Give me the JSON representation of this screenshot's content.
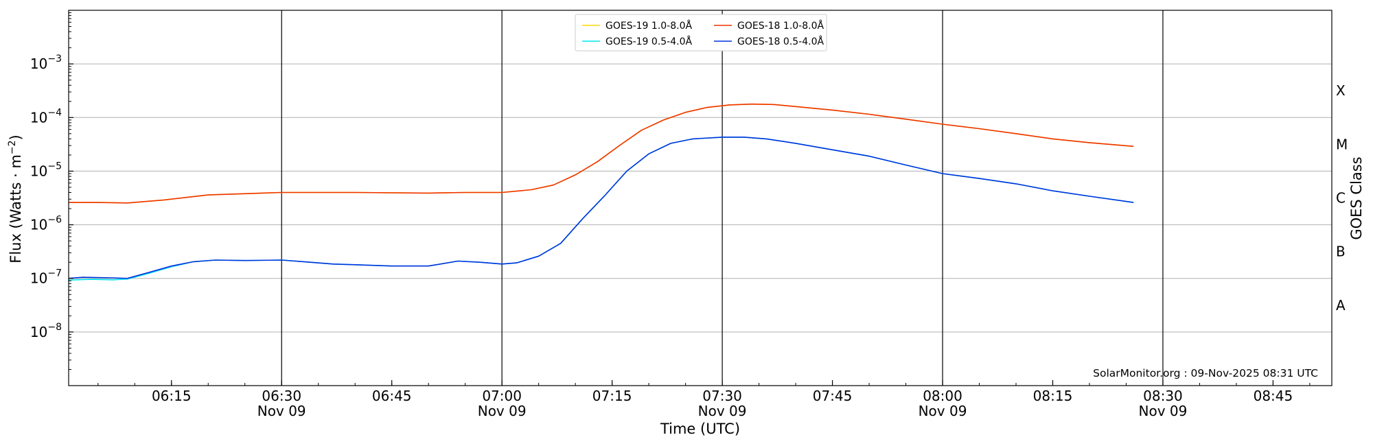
{
  "chart_data": {
    "type": "line",
    "ylabel": "Flux (Watts · m",
    "ylabel_sup": "−2",
    "ylabel_close": ")",
    "xlabel": "Time (UTC)",
    "y2label": "GOES Class",
    "y_scale": "log",
    "ylim": [
      1e-09,
      0.01
    ],
    "xlim": [
      "2025-11-09 06:01",
      "2025-11-09 08:53"
    ],
    "grid": "horizontal",
    "legend_position": "top-center",
    "credit": "SolarMonitor.org : 09-Nov-2025 08:31 UTC",
    "x_ticks": [
      {
        "time": "2025-11-09 06:15",
        "label": "06:15",
        "sublabel": ""
      },
      {
        "time": "2025-11-09 06:30",
        "label": "06:30",
        "sublabel": "Nov 09"
      },
      {
        "time": "2025-11-09 06:45",
        "label": "06:45",
        "sublabel": ""
      },
      {
        "time": "2025-11-09 07:00",
        "label": "07:00",
        "sublabel": "Nov 09"
      },
      {
        "time": "2025-11-09 07:15",
        "label": "07:15",
        "sublabel": ""
      },
      {
        "time": "2025-11-09 07:30",
        "label": "07:30",
        "sublabel": "Nov 09"
      },
      {
        "time": "2025-11-09 07:45",
        "label": "07:45",
        "sublabel": ""
      },
      {
        "time": "2025-11-09 08:00",
        "label": "08:00",
        "sublabel": "Nov 09"
      },
      {
        "time": "2025-11-09 08:15",
        "label": "08:15",
        "sublabel": ""
      },
      {
        "time": "2025-11-09 08:30",
        "label": "08:30",
        "sublabel": "Nov 09"
      },
      {
        "time": "2025-11-09 08:45",
        "label": "08:45",
        "sublabel": ""
      }
    ],
    "vertical_lines": [
      "2025-11-09 06:30",
      "2025-11-09 07:00",
      "2025-11-09 07:30",
      "2025-11-09 08:00",
      "2025-11-09 08:30"
    ],
    "y_ticks": [
      {
        "value": 0.001,
        "base": "10",
        "exp": "−3"
      },
      {
        "value": 0.0001,
        "base": "10",
        "exp": "−4"
      },
      {
        "value": 1e-05,
        "base": "10",
        "exp": "−5"
      },
      {
        "value": 1e-06,
        "base": "10",
        "exp": "−6"
      },
      {
        "value": 1e-07,
        "base": "10",
        "exp": "−7"
      },
      {
        "value": 1e-08,
        "base": "10",
        "exp": "−8"
      }
    ],
    "goes_classes": [
      {
        "label": "X",
        "value": 0.000316
      },
      {
        "label": "M",
        "value": 3.16e-05
      },
      {
        "label": "C",
        "value": 3.16e-06
      },
      {
        "label": "B",
        "value": 3.16e-07
      },
      {
        "label": "A",
        "value": 3.16e-08
      }
    ],
    "legend": [
      {
        "label": "GOES-19 1.0-8.0Å",
        "color": "#ffd700"
      },
      {
        "label": "GOES-19 0.5-4.0Å",
        "color": "#00e5ee"
      },
      {
        "label": "GOES-18 1.0-8.0Å",
        "color": "#ee3300"
      },
      {
        "label": "GOES-18 0.5-4.0Å",
        "color": "#0033dd"
      }
    ],
    "series": [
      {
        "name": "GOES-19 1.0-8.0Å",
        "color": "#ffd700",
        "points": [
          [
            "2025-11-09 06:01",
            2.6e-06
          ],
          [
            "2025-11-09 06:05",
            2.6e-06
          ],
          [
            "2025-11-09 06:09",
            2.55e-06
          ],
          [
            "2025-11-09 06:14",
            2.9e-06
          ],
          [
            "2025-11-09 06:20",
            3.6e-06
          ],
          [
            "2025-11-09 06:30",
            4e-06
          ],
          [
            "2025-11-09 06:40",
            4e-06
          ],
          [
            "2025-11-09 06:50",
            3.9e-06
          ],
          [
            "2025-11-09 06:55",
            4e-06
          ],
          [
            "2025-11-09 07:00",
            4e-06
          ],
          [
            "2025-11-09 07:04",
            4.5e-06
          ],
          [
            "2025-11-09 07:07",
            5.5e-06
          ],
          [
            "2025-11-09 07:10",
            8.5e-06
          ],
          [
            "2025-11-09 07:13",
            1.5e-05
          ],
          [
            "2025-11-09 07:16",
            3e-05
          ],
          [
            "2025-11-09 07:19",
            5.8e-05
          ],
          [
            "2025-11-09 07:22",
            9e-05
          ],
          [
            "2025-11-09 07:25",
            0.000125
          ],
          [
            "2025-11-09 07:28",
            0.000155
          ],
          [
            "2025-11-09 07:31",
            0.000172
          ],
          [
            "2025-11-09 07:34",
            0.000178
          ],
          [
            "2025-11-09 07:37",
            0.000175
          ],
          [
            "2025-11-09 07:40",
            0.00016
          ],
          [
            "2025-11-09 07:45",
            0.000138
          ],
          [
            "2025-11-09 07:50",
            0.000115
          ],
          [
            "2025-11-09 07:55",
            9.3e-05
          ],
          [
            "2025-11-09 08:00",
            7.5e-05
          ],
          [
            "2025-11-09 08:05",
            6.2e-05
          ],
          [
            "2025-11-09 08:10",
            5e-05
          ],
          [
            "2025-11-09 08:15",
            4e-05
          ],
          [
            "2025-11-09 08:20",
            3.4e-05
          ],
          [
            "2025-11-09 08:26",
            2.9e-05
          ]
        ]
      },
      {
        "name": "GOES-19 0.5-4.0Å",
        "color": "#00e5ee",
        "points": [
          [
            "2025-11-09 06:01",
            9.3e-08
          ],
          [
            "2025-11-09 06:04",
            9.6e-08
          ],
          [
            "2025-11-09 06:07",
            9.4e-08
          ],
          [
            "2025-11-09 06:09",
            9.7e-08
          ],
          [
            "2025-11-09 06:12",
            1.25e-07
          ],
          [
            "2025-11-09 06:15",
            1.65e-07
          ],
          [
            "2025-11-09 06:18",
            2.05e-07
          ],
          [
            "2025-11-09 06:21",
            2.2e-07
          ],
          [
            "2025-11-09 06:25",
            2.15e-07
          ],
          [
            "2025-11-09 06:30",
            2.2e-07
          ],
          [
            "2025-11-09 06:33",
            2.05e-07
          ],
          [
            "2025-11-09 06:37",
            1.85e-07
          ],
          [
            "2025-11-09 06:40",
            1.8e-07
          ],
          [
            "2025-11-09 06:45",
            1.7e-07
          ],
          [
            "2025-11-09 06:50",
            1.7e-07
          ],
          [
            "2025-11-09 06:54",
            2.1e-07
          ],
          [
            "2025-11-09 06:57",
            2e-07
          ],
          [
            "2025-11-09 07:00",
            1.85e-07
          ],
          [
            "2025-11-09 07:02",
            1.95e-07
          ],
          [
            "2025-11-09 07:05",
            2.6e-07
          ],
          [
            "2025-11-09 07:08",
            4.5e-07
          ],
          [
            "2025-11-09 07:11",
            1.3e-06
          ],
          [
            "2025-11-09 07:14",
            3.5e-06
          ],
          [
            "2025-11-09 07:17",
            1e-05
          ],
          [
            "2025-11-09 07:20",
            2.1e-05
          ],
          [
            "2025-11-09 07:23",
            3.3e-05
          ],
          [
            "2025-11-09 07:26",
            4e-05
          ],
          [
            "2025-11-09 07:30",
            4.3e-05
          ],
          [
            "2025-11-09 07:33",
            4.3e-05
          ],
          [
            "2025-11-09 07:36",
            4e-05
          ],
          [
            "2025-11-09 07:40",
            3.3e-05
          ],
          [
            "2025-11-09 07:45",
            2.5e-05
          ],
          [
            "2025-11-09 07:50",
            1.9e-05
          ],
          [
            "2025-11-09 07:55",
            1.3e-05
          ],
          [
            "2025-11-09 08:00",
            9e-06
          ],
          [
            "2025-11-09 08:05",
            7.3e-06
          ],
          [
            "2025-11-09 08:10",
            5.8e-06
          ],
          [
            "2025-11-09 08:15",
            4.3e-06
          ],
          [
            "2025-11-09 08:20",
            3.4e-06
          ],
          [
            "2025-11-09 08:26",
            2.6e-06
          ]
        ]
      },
      {
        "name": "GOES-18 1.0-8.0Å",
        "color": "#ee3300",
        "points": [
          [
            "2025-11-09 06:01",
            2.6e-06
          ],
          [
            "2025-11-09 06:05",
            2.6e-06
          ],
          [
            "2025-11-09 06:09",
            2.55e-06
          ],
          [
            "2025-11-09 06:14",
            2.9e-06
          ],
          [
            "2025-11-09 06:20",
            3.6e-06
          ],
          [
            "2025-11-09 06:30",
            4e-06
          ],
          [
            "2025-11-09 06:40",
            4e-06
          ],
          [
            "2025-11-09 06:50",
            3.9e-06
          ],
          [
            "2025-11-09 06:55",
            4e-06
          ],
          [
            "2025-11-09 07:00",
            4e-06
          ],
          [
            "2025-11-09 07:04",
            4.5e-06
          ],
          [
            "2025-11-09 07:07",
            5.5e-06
          ],
          [
            "2025-11-09 07:10",
            8.5e-06
          ],
          [
            "2025-11-09 07:13",
            1.5e-05
          ],
          [
            "2025-11-09 07:16",
            3e-05
          ],
          [
            "2025-11-09 07:19",
            5.8e-05
          ],
          [
            "2025-11-09 07:22",
            9e-05
          ],
          [
            "2025-11-09 07:25",
            0.000125
          ],
          [
            "2025-11-09 07:28",
            0.000155
          ],
          [
            "2025-11-09 07:31",
            0.000172
          ],
          [
            "2025-11-09 07:34",
            0.000178
          ],
          [
            "2025-11-09 07:37",
            0.000175
          ],
          [
            "2025-11-09 07:40",
            0.00016
          ],
          [
            "2025-11-09 07:45",
            0.000138
          ],
          [
            "2025-11-09 07:50",
            0.000115
          ],
          [
            "2025-11-09 07:55",
            9.3e-05
          ],
          [
            "2025-11-09 08:00",
            7.5e-05
          ],
          [
            "2025-11-09 08:05",
            6.2e-05
          ],
          [
            "2025-11-09 08:10",
            5e-05
          ],
          [
            "2025-11-09 08:15",
            4e-05
          ],
          [
            "2025-11-09 08:20",
            3.4e-05
          ],
          [
            "2025-11-09 08:26",
            2.9e-05
          ]
        ]
      },
      {
        "name": "GOES-18 0.5-4.0Å",
        "color": "#0033dd",
        "points": [
          [
            "2025-11-09 06:01",
            1e-07
          ],
          [
            "2025-11-09 06:03",
            1.05e-07
          ],
          [
            "2025-11-09 06:07",
            1.02e-07
          ],
          [
            "2025-11-09 06:09",
            1e-07
          ],
          [
            "2025-11-09 06:12",
            1.3e-07
          ],
          [
            "2025-11-09 06:15",
            1.7e-07
          ],
          [
            "2025-11-09 06:18",
            2.05e-07
          ],
          [
            "2025-11-09 06:21",
            2.2e-07
          ],
          [
            "2025-11-09 06:25",
            2.15e-07
          ],
          [
            "2025-11-09 06:30",
            2.2e-07
          ],
          [
            "2025-11-09 06:33",
            2.05e-07
          ],
          [
            "2025-11-09 06:37",
            1.85e-07
          ],
          [
            "2025-11-09 06:40",
            1.8e-07
          ],
          [
            "2025-11-09 06:45",
            1.7e-07
          ],
          [
            "2025-11-09 06:50",
            1.7e-07
          ],
          [
            "2025-11-09 06:54",
            2.1e-07
          ],
          [
            "2025-11-09 06:57",
            2e-07
          ],
          [
            "2025-11-09 07:00",
            1.85e-07
          ],
          [
            "2025-11-09 07:02",
            1.95e-07
          ],
          [
            "2025-11-09 07:05",
            2.6e-07
          ],
          [
            "2025-11-09 07:08",
            4.5e-07
          ],
          [
            "2025-11-09 07:11",
            1.3e-06
          ],
          [
            "2025-11-09 07:14",
            3.5e-06
          ],
          [
            "2025-11-09 07:17",
            1e-05
          ],
          [
            "2025-11-09 07:20",
            2.1e-05
          ],
          [
            "2025-11-09 07:23",
            3.3e-05
          ],
          [
            "2025-11-09 07:26",
            4e-05
          ],
          [
            "2025-11-09 07:30",
            4.3e-05
          ],
          [
            "2025-11-09 07:33",
            4.3e-05
          ],
          [
            "2025-11-09 07:36",
            4e-05
          ],
          [
            "2025-11-09 07:40",
            3.3e-05
          ],
          [
            "2025-11-09 07:45",
            2.5e-05
          ],
          [
            "2025-11-09 07:50",
            1.9e-05
          ],
          [
            "2025-11-09 07:55",
            1.3e-05
          ],
          [
            "2025-11-09 08:00",
            9e-06
          ],
          [
            "2025-11-09 08:05",
            7.3e-06
          ],
          [
            "2025-11-09 08:10",
            5.8e-06
          ],
          [
            "2025-11-09 08:15",
            4.3e-06
          ],
          [
            "2025-11-09 08:20",
            3.4e-06
          ],
          [
            "2025-11-09 08:26",
            2.6e-06
          ]
        ]
      }
    ]
  }
}
